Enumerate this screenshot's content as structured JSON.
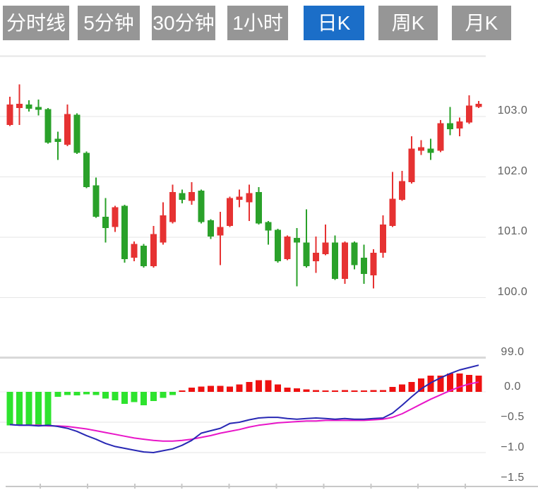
{
  "toolbar": {
    "tabs": [
      {
        "label": "分时线",
        "active": false
      },
      {
        "label": "5分钟",
        "active": false
      },
      {
        "label": "30分钟",
        "active": false
      },
      {
        "label": "1小时",
        "active": false
      },
      {
        "label": "日K",
        "active": true
      },
      {
        "label": "周K",
        "active": false
      },
      {
        "label": "月K",
        "active": false
      }
    ]
  },
  "chart": {
    "price_axis_labels": [
      "103.0",
      "102.0",
      "101.0",
      "100.0",
      "99.0"
    ],
    "macd_axis_labels": [
      "0.0",
      "−0.5",
      "−1.0",
      "−1.5"
    ]
  },
  "colors": {
    "tab_inactive": "#969696",
    "tab_active": "#1b6ec8",
    "up": "#e63232",
    "down": "#2aa12a",
    "hist_pos": "#ee1111",
    "hist_neg": "#2ee32e",
    "dif_line": "#2828b4",
    "dea_line": "#e816c8",
    "grid": "#e6e6e6",
    "divider": "#d9d9d9",
    "axis_line": "#c8c8c8",
    "label_text": "#5f5f5f"
  },
  "chart_data": {
    "type": "candlestick",
    "title": "",
    "xlabel": "",
    "ylabel": "",
    "up_means": "close >= open (red, Chinese convention)",
    "price_ticks": [
      103.0,
      102.0,
      101.0,
      100.0,
      99.0
    ],
    "price_range": [
      99.0,
      104.0
    ],
    "x_axis": {
      "labels": [],
      "tick_count": 10
    },
    "candles_ohlc": [
      [
        102.86,
        103.33,
        102.84,
        103.2
      ],
      [
        103.14,
        103.53,
        102.86,
        103.21
      ],
      [
        103.2,
        103.27,
        103.08,
        103.13
      ],
      [
        103.16,
        103.28,
        103.02,
        103.11
      ],
      [
        103.12,
        103.14,
        102.55,
        102.57
      ],
      [
        102.63,
        102.75,
        102.28,
        102.58
      ],
      [
        102.53,
        103.2,
        102.51,
        103.04
      ],
      [
        103.03,
        103.05,
        102.38,
        102.4
      ],
      [
        102.4,
        102.42,
        101.81,
        101.83
      ],
      [
        101.86,
        101.99,
        101.32,
        101.34
      ],
      [
        101.34,
        101.65,
        100.91,
        101.15
      ],
      [
        101.17,
        101.52,
        101.09,
        101.5
      ],
      [
        101.52,
        101.54,
        100.58,
        100.64
      ],
      [
        100.66,
        100.93,
        100.6,
        100.89
      ],
      [
        100.86,
        100.89,
        100.5,
        100.52
      ],
      [
        100.52,
        101.19,
        100.5,
        101.05
      ],
      [
        100.91,
        101.58,
        100.88,
        101.36
      ],
      [
        101.25,
        101.87,
        101.23,
        101.75
      ],
      [
        101.73,
        101.79,
        101.56,
        101.62
      ],
      [
        101.6,
        101.91,
        101.54,
        101.75
      ],
      [
        101.77,
        101.79,
        101.23,
        101.25
      ],
      [
        101.28,
        101.3,
        100.97,
        101.01
      ],
      [
        101.03,
        101.42,
        100.54,
        101.17
      ],
      [
        101.19,
        101.67,
        101.17,
        101.65
      ],
      [
        101.62,
        101.79,
        101.5,
        101.67
      ],
      [
        101.58,
        101.87,
        101.27,
        101.73
      ],
      [
        101.75,
        101.83,
        101.21,
        101.23
      ],
      [
        101.25,
        101.27,
        100.88,
        101.11
      ],
      [
        101.12,
        101.14,
        100.58,
        100.6
      ],
      [
        100.64,
        101.03,
        100.62,
        101.01
      ],
      [
        100.99,
        101.15,
        100.19,
        100.91
      ],
      [
        100.91,
        101.46,
        100.5,
        100.52
      ],
      [
        100.6,
        101.01,
        100.41,
        100.74
      ],
      [
        100.72,
        101.21,
        100.7,
        100.91
      ],
      [
        100.91,
        101.03,
        100.29,
        100.31
      ],
      [
        100.31,
        100.93,
        100.23,
        100.91
      ],
      [
        100.91,
        100.93,
        100.47,
        100.54
      ],
      [
        100.66,
        100.88,
        100.23,
        100.39
      ],
      [
        100.37,
        100.8,
        100.15,
        100.74
      ],
      [
        100.74,
        101.36,
        100.66,
        101.21
      ],
      [
        101.19,
        102.08,
        101.17,
        101.64
      ],
      [
        101.62,
        102.1,
        101.6,
        101.93
      ],
      [
        101.91,
        102.67,
        101.89,
        102.47
      ],
      [
        102.43,
        102.61,
        102.36,
        102.49
      ],
      [
        102.47,
        102.63,
        102.28,
        102.4
      ],
      [
        102.43,
        102.94,
        102.41,
        102.89
      ],
      [
        102.89,
        103.16,
        102.69,
        102.79
      ],
      [
        102.8,
        102.98,
        102.67,
        102.92
      ],
      [
        102.9,
        103.35,
        102.88,
        103.18
      ],
      [
        103.16,
        103.26,
        103.14,
        103.21
      ]
    ],
    "indicator": {
      "type": "macd",
      "ticks": [
        0.0,
        -0.5,
        -1.0,
        -1.5
      ],
      "range": [
        -1.6,
        0.55
      ],
      "histogram": [
        -0.55,
        -0.55,
        -0.55,
        -0.55,
        -0.55,
        -0.08,
        -0.05,
        -0.06,
        -0.04,
        -0.05,
        -0.11,
        -0.14,
        -0.2,
        -0.17,
        -0.22,
        -0.15,
        -0.1,
        -0.05,
        0.02,
        0.07,
        0.09,
        0.1,
        0.1,
        0.09,
        0.12,
        0.16,
        0.19,
        0.19,
        0.12,
        0.07,
        0.06,
        0.04,
        0.03,
        0.02,
        0.02,
        0.03,
        0.02,
        0.02,
        0.03,
        0.03,
        0.08,
        0.12,
        0.16,
        0.22,
        0.27,
        0.27,
        0.3,
        0.3,
        0.28,
        0.27
      ],
      "dif": [
        -0.54,
        -0.55,
        -0.55,
        -0.56,
        -0.55,
        -0.57,
        -0.6,
        -0.65,
        -0.72,
        -0.78,
        -0.85,
        -0.9,
        -0.93,
        -0.96,
        -0.99,
        -1.0,
        -0.97,
        -0.94,
        -0.88,
        -0.8,
        -0.68,
        -0.64,
        -0.6,
        -0.52,
        -0.5,
        -0.46,
        -0.43,
        -0.42,
        -0.42,
        -0.44,
        -0.45,
        -0.44,
        -0.43,
        -0.44,
        -0.45,
        -0.44,
        -0.45,
        -0.45,
        -0.44,
        -0.43,
        -0.35,
        -0.22,
        -0.08,
        0.05,
        0.15,
        0.23,
        0.3,
        0.36,
        0.4,
        0.44
      ],
      "dea": [
        -0.54,
        -0.55,
        -0.55,
        -0.55,
        -0.56,
        -0.56,
        -0.57,
        -0.59,
        -0.61,
        -0.64,
        -0.67,
        -0.7,
        -0.73,
        -0.76,
        -0.78,
        -0.8,
        -0.81,
        -0.81,
        -0.8,
        -0.78,
        -0.75,
        -0.72,
        -0.68,
        -0.65,
        -0.62,
        -0.58,
        -0.55,
        -0.53,
        -0.51,
        -0.5,
        -0.49,
        -0.48,
        -0.48,
        -0.47,
        -0.47,
        -0.47,
        -0.47,
        -0.47,
        -0.46,
        -0.45,
        -0.42,
        -0.36,
        -0.28,
        -0.2,
        -0.12,
        -0.05,
        0.02,
        0.08,
        0.13,
        0.16
      ]
    }
  }
}
